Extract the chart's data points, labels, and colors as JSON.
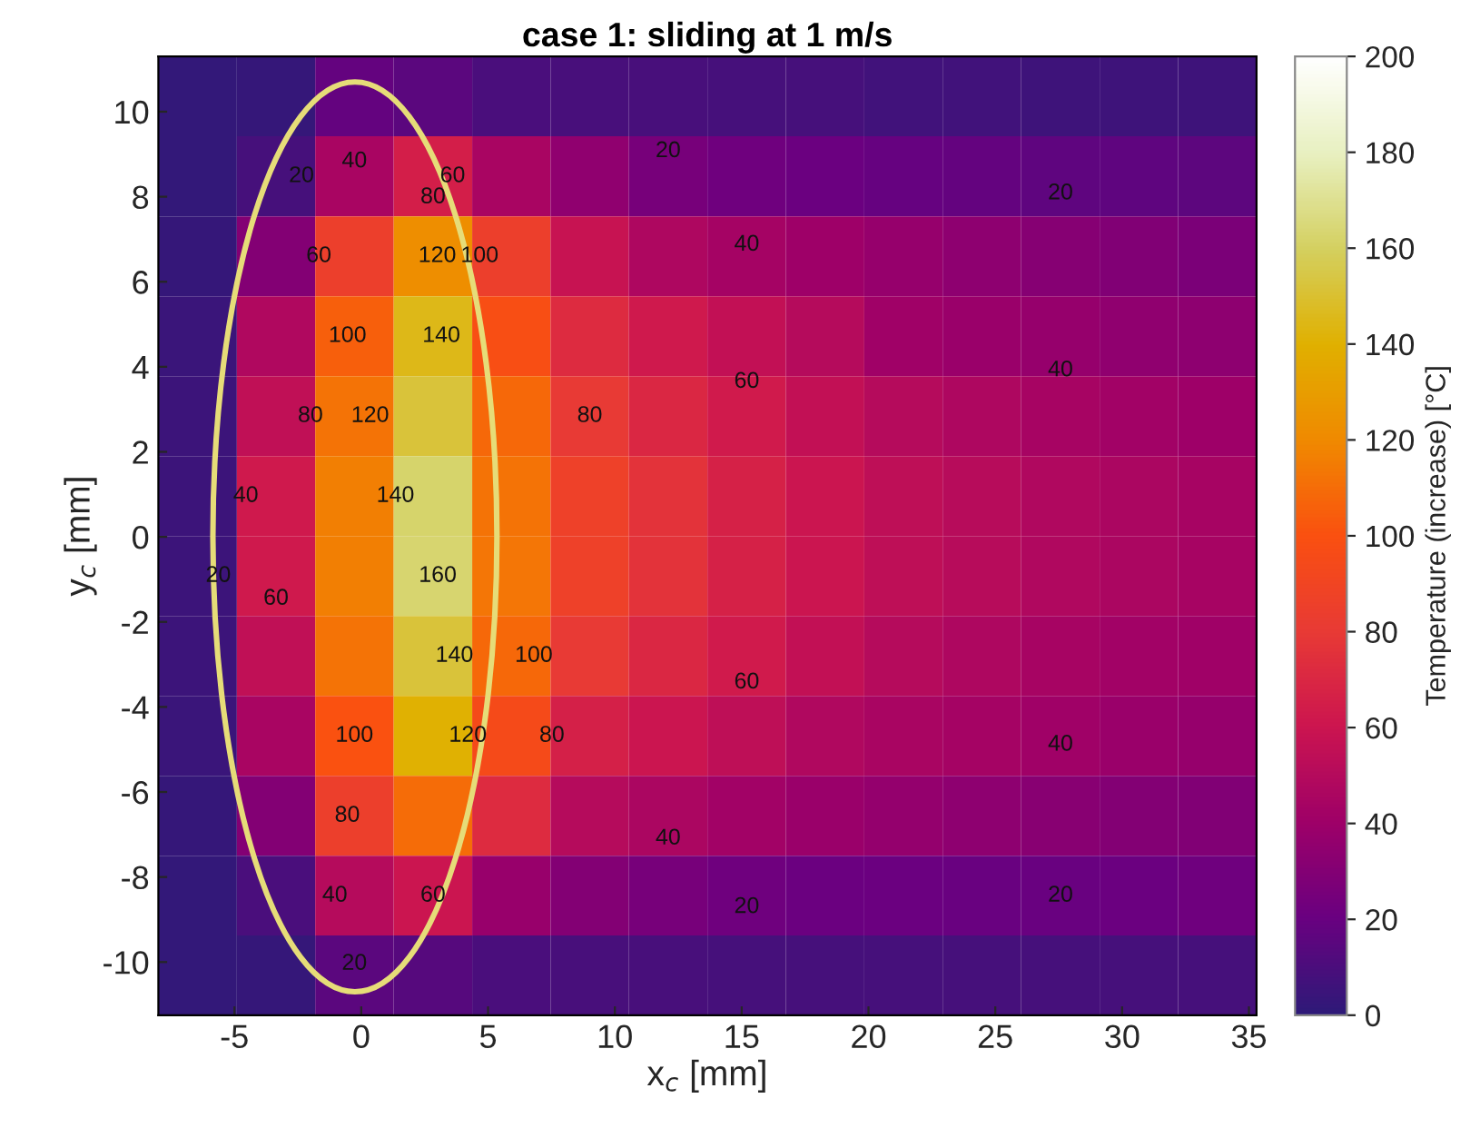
{
  "chart_data": {
    "type": "heatmap",
    "title": "case 1: sliding at 1 m/s",
    "xlabel": "x$_{c}$ [mm]",
    "ylabel": "y$_{c}$ [mm]",
    "clabel": "Temperature (increase) [°C]",
    "xlim": [
      -8,
      35.3
    ],
    "ylim": [
      -11.25,
      11.3
    ],
    "xticks": [
      -5,
      0,
      5,
      10,
      15,
      20,
      25,
      30,
      35
    ],
    "yticks": [
      -10,
      -8,
      -6,
      -4,
      -2,
      0,
      2,
      4,
      6,
      8,
      10
    ],
    "clim": [
      0,
      200
    ],
    "cticks": [
      0,
      20,
      40,
      60,
      80,
      100,
      120,
      140,
      160,
      180,
      200
    ],
    "colors": [
      "#2e1a78",
      "#6a0080",
      "#9e0068",
      "#cc1550",
      "#e83a35",
      "#fa5010",
      "#f08a00",
      "#e0b000",
      "#d4d060",
      "#e8f0c0",
      "#ffffff"
    ],
    "x": [
      -6.45,
      -3.36,
      -0.27,
      2.83,
      5.92,
      9.01,
      12.1,
      15.2,
      18.29,
      21.38,
      24.47,
      27.57,
      30.66,
      33.75
    ],
    "y": [
      10.36,
      8.48,
      6.6,
      4.72,
      2.84,
      0.96,
      -0.92,
      -2.8,
      -4.68,
      -6.56,
      -8.44,
      -10.31
    ],
    "cells": [
      [
        2,
        3,
        18,
        15,
        10,
        9,
        9,
        8,
        8,
        7,
        7,
        6,
        6,
        6
      ],
      [
        2,
        8,
        45,
        65,
        45,
        35,
        25,
        22,
        21,
        19,
        18,
        17,
        17,
        16
      ],
      [
        3,
        30,
        85,
        122,
        85,
        58,
        47,
        43,
        40,
        37,
        34,
        31,
        29,
        27
      ],
      [
        4,
        48,
        105,
        145,
        98,
        72,
        62,
        56,
        50,
        41,
        39,
        37,
        35,
        34
      ],
      [
        5,
        55,
        112,
        152,
        108,
        80,
        70,
        63,
        56,
        50,
        47,
        44,
        42,
        40
      ],
      [
        5,
        62,
        116,
        162,
        112,
        86,
        76,
        67,
        60,
        54,
        51,
        48,
        46,
        44
      ],
      [
        5,
        62,
        116,
        163,
        113,
        86,
        76,
        67,
        60,
        54,
        51,
        48,
        46,
        44
      ],
      [
        5,
        55,
        112,
        152,
        108,
        80,
        70,
        63,
        56,
        50,
        47,
        44,
        42,
        41
      ],
      [
        4,
        45,
        100,
        140,
        95,
        66,
        60,
        54,
        48,
        45,
        43,
        41,
        39,
        37
      ],
      [
        3,
        30,
        85,
        110,
        72,
        50,
        46,
        42,
        39,
        36,
        34,
        32,
        30,
        29
      ],
      [
        2,
        10,
        50,
        60,
        38,
        30,
        25,
        22,
        21,
        21,
        20,
        20,
        21,
        22
      ],
      [
        2,
        3,
        15,
        14,
        10,
        9,
        9,
        8,
        8,
        8,
        8,
        8,
        8,
        8
      ]
    ],
    "annotations": [
      "20",
      "60",
      "40",
      "80",
      "20",
      "40",
      "120",
      "140",
      "100",
      "60",
      "100",
      "80",
      "60",
      "160",
      "120",
      "80",
      "20",
      "40",
      "20",
      "40",
      "140",
      "120",
      "140",
      "100",
      "100",
      "80",
      "60",
      "80",
      "60",
      "40",
      "20",
      "60",
      "40",
      "40",
      "20",
      "20"
    ]
  }
}
